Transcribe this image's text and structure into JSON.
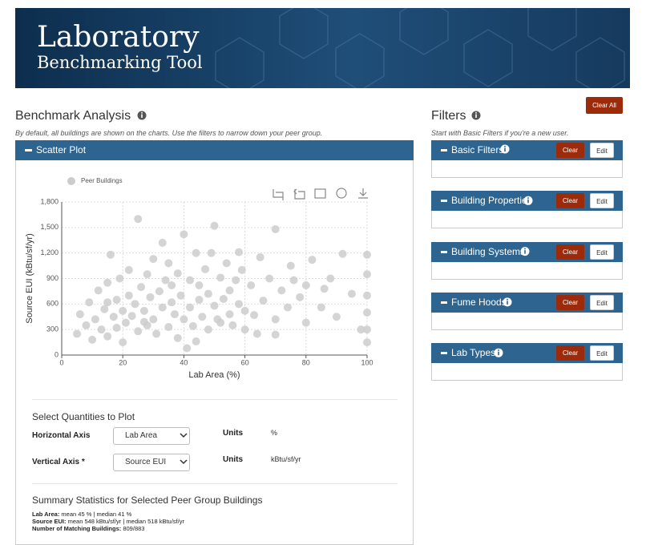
{
  "header": {
    "title": "Laboratory",
    "subtitle": "Benchmarking Tool"
  },
  "analysis": {
    "title": "Benchmark Analysis",
    "note": "By default, all buildings are shown on the charts. Use the filters to narrow down your peer group.",
    "panel_title": "Scatter Plot"
  },
  "chart_data": {
    "type": "scatter",
    "x_label": "Lab Area (%)",
    "y_label": "Source EUI (kBtu/sf/yr)",
    "xlim": [
      0,
      100
    ],
    "ylim": [
      0,
      1800
    ],
    "xticks": [
      0,
      20,
      40,
      60,
      80,
      100
    ],
    "yticks": [
      0,
      300,
      600,
      900,
      {
        "value": 1200,
        "label": "1,200"
      },
      {
        "value": 1500,
        "label": "1,500"
      },
      {
        "value": 1800,
        "label": "1,800"
      }
    ],
    "grid": true,
    "series": [
      {
        "name": "Peer Buildings",
        "color": "#cccccc",
        "x": [
          5,
          6,
          8,
          9,
          10,
          11,
          12,
          13,
          14,
          15,
          15,
          16,
          17,
          18,
          18,
          19,
          20,
          20,
          21,
          22,
          22,
          23,
          24,
          25,
          25,
          26,
          27,
          28,
          28,
          29,
          30,
          30,
          31,
          32,
          33,
          34,
          35,
          35,
          36,
          37,
          38,
          38,
          39,
          40,
          40,
          41,
          42,
          42,
          43,
          44,
          45,
          45,
          46,
          47,
          48,
          48,
          49,
          50,
          50,
          51,
          52,
          53,
          54,
          55,
          55,
          56,
          57,
          58,
          59,
          60,
          60,
          62,
          63,
          65,
          66,
          68,
          70,
          70,
          70,
          72,
          74,
          75,
          78,
          80,
          80,
          82,
          85,
          88,
          90,
          92,
          95,
          98,
          100,
          100,
          100,
          100,
          100,
          100,
          33,
          15,
          27,
          64,
          76,
          44,
          52,
          36,
          58,
          86
        ],
        "values": [
          250,
          480,
          350,
          620,
          180,
          420,
          760,
          300,
          540,
          850,
          220,
          1180,
          450,
          650,
          320,
          900,
          520,
          150,
          380,
          700,
          1000,
          460,
          600,
          1600,
          280,
          800,
          520,
          950,
          350,
          680,
          420,
          1130,
          250,
          750,
          560,
          880,
          330,
          1080,
          620,
          480,
          960,
          200,
          700,
          1420,
          420,
          80,
          880,
          560,
          340,
          1200,
          650,
          820,
          450,
          1010,
          720,
          300,
          1200,
          1520,
          580,
          420,
          910,
          660,
          1080,
          480,
          760,
          350,
          880,
          600,
          1000,
          520,
          300,
          820,
          470,
          1150,
          640,
          900,
          1480,
          420,
          240,
          760,
          560,
          1050,
          680,
          820,
          380,
          1120,
          560,
          900,
          450,
          1190,
          720,
          300,
          1180,
          950,
          700,
          500,
          300,
          150,
          1320,
          620,
          390,
          250,
          880,
          160,
          380,
          820,
          1210,
          780
        ]
      }
    ]
  },
  "controls": {
    "title": "Select Quantities to Plot",
    "horizontal_label": "Horizontal Axis",
    "horizontal_value": "Lab Area",
    "vertical_label": "Vertical Axis *",
    "vertical_value": "Source EUI",
    "units_label_1": "Units",
    "units_value_1": "%",
    "units_label_2": "Units",
    "units_value_2": "kBtu/sf/yr"
  },
  "summary": {
    "title": "Summary Statistics for Selected Peer Group Buildings",
    "lines": [
      {
        "label": "Lab Area:",
        "text": "mean 45 % | median 41 %"
      },
      {
        "label": "Source EUI:",
        "text": "mean 548 kBtu/sf/yr | median 518 kBtu/sf/yr"
      },
      {
        "label": "Number of Matching Buildings:",
        "text": "809/883"
      }
    ]
  },
  "filters": {
    "title": "Filters",
    "clear_all": "Clear All",
    "note": "Start with Basic Filters if you're a new user.",
    "panels": [
      {
        "name": "Basic Filters",
        "clear": "Clear",
        "edit": "Edit"
      },
      {
        "name": "Building Properties",
        "clear": "Clear",
        "edit": "Edit"
      },
      {
        "name": "Building Systems",
        "clear": "Clear",
        "edit": "Edit"
      },
      {
        "name": "Fume Hoods",
        "clear": "Clear",
        "edit": "Edit"
      },
      {
        "name": "Lab Types",
        "clear": "Clear",
        "edit": "Edit"
      }
    ]
  }
}
